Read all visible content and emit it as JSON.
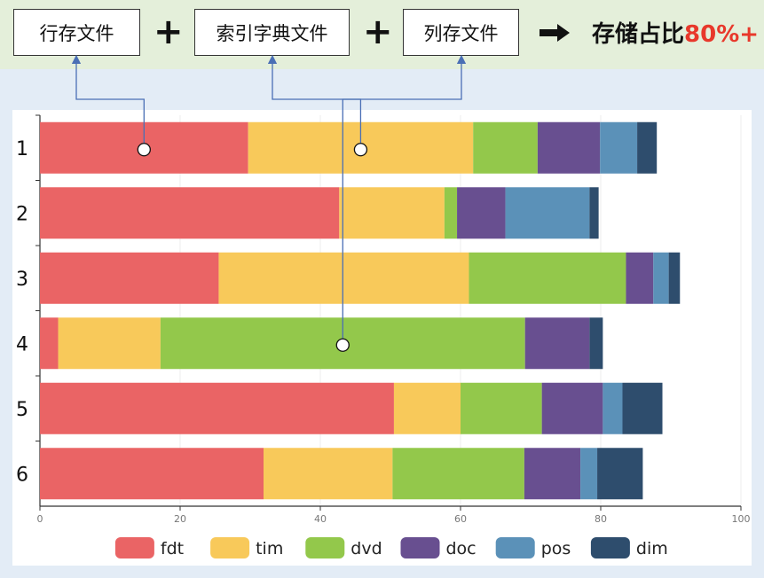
{
  "header": {
    "boxes": [
      "行存文件",
      "索引字典文件",
      "列存文件"
    ],
    "plus": "+",
    "ratio_prefix": "存储占比",
    "ratio_value": "80%+",
    "highlight_color": "#e8382b"
  },
  "chart_data": {
    "type": "bar",
    "orientation": "horizontal",
    "stacked": true,
    "categories": [
      "1",
      "2",
      "3",
      "4",
      "5",
      "6"
    ],
    "xlim": [
      0,
      100
    ],
    "xticks": [
      0,
      20,
      40,
      60,
      80,
      100
    ],
    "grid": true,
    "legend_position": "bottom",
    "series": [
      {
        "name": "fdt",
        "color": "#ea6465",
        "values": [
          29.7,
          42.7,
          25.5,
          2.6,
          50.5,
          31.9
        ]
      },
      {
        "name": "tim",
        "color": "#f8c95a",
        "values": [
          32.1,
          15.0,
          35.7,
          14.6,
          9.5,
          18.4
        ]
      },
      {
        "name": "dvd",
        "color": "#93c84b",
        "values": [
          9.2,
          1.8,
          22.4,
          52.0,
          11.6,
          18.8
        ]
      },
      {
        "name": "doc",
        "color": "#684f90",
        "values": [
          8.9,
          6.9,
          3.9,
          9.2,
          8.7,
          8.0
        ]
      },
      {
        "name": "pos",
        "color": "#5b91b8",
        "values": [
          5.3,
          12.0,
          2.2,
          0.0,
          2.8,
          2.4
        ]
      },
      {
        "name": "dim",
        "color": "#2e4d6d",
        "values": [
          2.8,
          1.3,
          1.6,
          1.9,
          5.7,
          6.5
        ]
      }
    ]
  }
}
